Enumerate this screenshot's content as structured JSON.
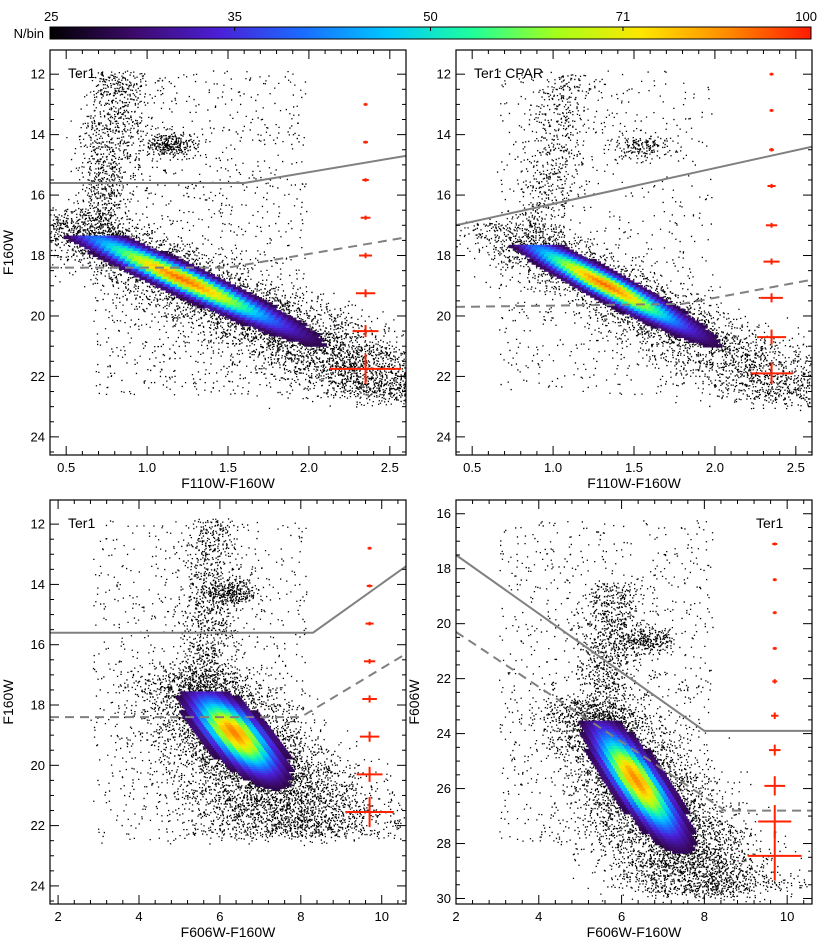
{
  "colorbar": {
    "label": "N/bin",
    "ticks": [
      {
        "value": 25,
        "label": "25"
      },
      {
        "value": 35,
        "label": "35"
      },
      {
        "value": 50,
        "label": "50"
      },
      {
        "value": 71,
        "label": "71"
      },
      {
        "value": 100,
        "label": "100"
      }
    ],
    "scale": "log",
    "range": [
      25,
      100
    ],
    "colors": [
      "#000000",
      "#3d0a6b",
      "#4b1fd8",
      "#1a6dff",
      "#00c8ff",
      "#1fff9a",
      "#a6ff1a",
      "#ffe600",
      "#ff8c00",
      "#ff1a00"
    ]
  },
  "style": {
    "point_color": "#000000",
    "error_color": "#ff2200",
    "line_color": "#808080"
  },
  "chart_data": [
    {
      "type": "scatter",
      "name": "panel-top-left",
      "title": "Ter1",
      "title_anchor": "left",
      "xlabel": "F110W-F160W",
      "ylabel": "F160W",
      "xlim": [
        0.4,
        2.6
      ],
      "ylim": [
        24.6,
        11.2
      ],
      "xticks": [
        0.5,
        1.0,
        1.5,
        2.0,
        2.5
      ],
      "yticks": [
        12,
        14,
        16,
        18,
        20,
        22,
        24
      ],
      "xtick_labels": [
        "0.5",
        "1.0",
        "1.5",
        "2.0",
        "2.5"
      ],
      "ytick_labels": [
        "12",
        "14",
        "16",
        "18",
        "20",
        "22",
        "24"
      ],
      "show_xlabel": true,
      "show_ylabel": true,
      "density": {
        "color_slope": 0.38,
        "mag_ref": 18.8,
        "color_at_ref": 1.22,
        "width": 0.14,
        "mag_top": 17.4,
        "mag_bottom": 21.3,
        "rgb_mag_top": 11.9,
        "rgb_width": 0.06,
        "rc_mag": 14.3,
        "rc_color": 1.15,
        "peak_mag": 18.8,
        "n_points": 5600
      },
      "solid_line": [
        [
          0.4,
          15.6
        ],
        [
          1.6,
          15.6
        ],
        [
          2.6,
          14.7
        ]
      ],
      "dashed_line": [
        [
          0.4,
          18.4
        ],
        [
          1.5,
          18.4
        ],
        [
          2.6,
          17.4
        ]
      ],
      "errorbars": [
        {
          "x": 2.35,
          "y": 13.0,
          "xerr": 0.01,
          "yerr": 0.04
        },
        {
          "x": 2.35,
          "y": 14.25,
          "xerr": 0.015,
          "yerr": 0.05
        },
        {
          "x": 2.35,
          "y": 15.5,
          "xerr": 0.02,
          "yerr": 0.06
        },
        {
          "x": 2.35,
          "y": 16.75,
          "xerr": 0.03,
          "yerr": 0.07
        },
        {
          "x": 2.35,
          "y": 18.0,
          "xerr": 0.04,
          "yerr": 0.09
        },
        {
          "x": 2.35,
          "y": 19.25,
          "xerr": 0.06,
          "yerr": 0.13
        },
        {
          "x": 2.35,
          "y": 20.5,
          "xerr": 0.08,
          "yerr": 0.2
        },
        {
          "x": 2.35,
          "y": 21.75,
          "xerr": 0.22,
          "yerr": 0.5
        }
      ]
    },
    {
      "type": "scatter",
      "name": "panel-top-right",
      "title": "Ter1 CPAR",
      "title_anchor": "left",
      "xlabel": "F110W-F160W",
      "ylabel": "",
      "xlim": [
        0.4,
        2.6
      ],
      "ylim": [
        24.6,
        11.2
      ],
      "xticks": [
        0.5,
        1.0,
        1.5,
        2.0,
        2.5
      ],
      "yticks": [
        12,
        14,
        16,
        18,
        20,
        22,
        24
      ],
      "xtick_labels": [
        "0.5",
        "1.0",
        "1.5",
        "2.0",
        "2.5"
      ],
      "ytick_labels": [
        "12",
        "14",
        "16",
        "18",
        "20",
        "22",
        "24"
      ],
      "show_xlabel": true,
      "show_ylabel": false,
      "density": {
        "color_slope": 0.33,
        "mag_ref": 19.0,
        "color_at_ref": 1.33,
        "width": 0.12,
        "mag_top": 17.7,
        "mag_bottom": 21.3,
        "rgb_mag_top": 12.0,
        "rgb_width": 0.06,
        "rc_mag": 14.4,
        "rc_color": 1.54,
        "peak_mag": 19.0,
        "n_points": 3400
      },
      "solid_line": [
        [
          0.4,
          17.0
        ],
        [
          2.6,
          14.4
        ]
      ],
      "dashed_line": [
        [
          0.4,
          19.7
        ],
        [
          1.8,
          19.6
        ],
        [
          2.6,
          18.8
        ]
      ],
      "errorbars": [
        {
          "x": 2.35,
          "y": 12.0,
          "xerr": 0.01,
          "yerr": 0.04
        },
        {
          "x": 2.35,
          "y": 13.2,
          "xerr": 0.012,
          "yerr": 0.05
        },
        {
          "x": 2.35,
          "y": 14.5,
          "xerr": 0.015,
          "yerr": 0.06
        },
        {
          "x": 2.35,
          "y": 15.7,
          "xerr": 0.025,
          "yerr": 0.07
        },
        {
          "x": 2.35,
          "y": 17.0,
          "xerr": 0.035,
          "yerr": 0.08
        },
        {
          "x": 2.35,
          "y": 18.2,
          "xerr": 0.05,
          "yerr": 0.1
        },
        {
          "x": 2.35,
          "y": 19.4,
          "xerr": 0.07,
          "yerr": 0.15
        },
        {
          "x": 2.35,
          "y": 20.7,
          "xerr": 0.09,
          "yerr": 0.25
        },
        {
          "x": 2.35,
          "y": 21.9,
          "xerr": 0.13,
          "yerr": 0.35
        }
      ]
    },
    {
      "type": "scatter",
      "name": "panel-bottom-left",
      "title": "Ter1",
      "title_anchor": "left",
      "xlabel": "F606W-F160W",
      "ylabel": "F160W",
      "xlim": [
        1.8,
        10.6
      ],
      "ylim": [
        24.6,
        11.2
      ],
      "xticks": [
        2,
        4,
        6,
        8,
        10
      ],
      "yticks": [
        12,
        14,
        16,
        18,
        20,
        22,
        24
      ],
      "xtick_labels": [
        "2",
        "4",
        "6",
        "8",
        "10"
      ],
      "ytick_labels": [
        "12",
        "14",
        "16",
        "18",
        "20",
        "22",
        "24"
      ],
      "show_xlabel": true,
      "show_ylabel": true,
      "density": {
        "color_slope": 0.55,
        "mag_ref": 19.0,
        "color_at_ref": 6.4,
        "width": 0.55,
        "mag_top": 17.6,
        "mag_bottom": 20.8,
        "rgb_mag_top": 11.8,
        "rgb_width": 0.22,
        "rc_mag": 14.3,
        "rc_color": 6.3,
        "peak_mag": 19.0,
        "n_points": 5000
      },
      "solid_line": [
        [
          1.8,
          15.6
        ],
        [
          8.3,
          15.6
        ],
        [
          10.6,
          13.4
        ]
      ],
      "dashed_line": [
        [
          1.8,
          18.4
        ],
        [
          8.0,
          18.4
        ],
        [
          10.6,
          16.3
        ]
      ],
      "errorbars": [
        {
          "x": 9.7,
          "y": 12.8,
          "xerr": 0.05,
          "yerr": 0.04
        },
        {
          "x": 9.7,
          "y": 14.05,
          "xerr": 0.07,
          "yerr": 0.05
        },
        {
          "x": 9.7,
          "y": 15.3,
          "xerr": 0.1,
          "yerr": 0.06
        },
        {
          "x": 9.7,
          "y": 16.55,
          "xerr": 0.14,
          "yerr": 0.08
        },
        {
          "x": 9.7,
          "y": 17.8,
          "xerr": 0.18,
          "yerr": 0.12
        },
        {
          "x": 9.7,
          "y": 19.05,
          "xerr": 0.24,
          "yerr": 0.17
        },
        {
          "x": 9.7,
          "y": 20.3,
          "xerr": 0.32,
          "yerr": 0.25
        },
        {
          "x": 9.7,
          "y": 21.55,
          "xerr": 0.6,
          "yerr": 0.5
        }
      ]
    },
    {
      "type": "scatter",
      "name": "panel-bottom-right",
      "title": "Ter1",
      "title_anchor": "right",
      "xlabel": "F606W-F160W",
      "ylabel": "F606W",
      "xlim": [
        2.0,
        10.6
      ],
      "ylim": [
        30.2,
        15.5
      ],
      "xticks": [
        2,
        4,
        6,
        8,
        10
      ],
      "yticks": [
        16,
        18,
        20,
        22,
        24,
        26,
        28,
        30
      ],
      "xtick_labels": [
        "2",
        "4",
        "6",
        "8",
        "10"
      ],
      "ytick_labels": [
        "16",
        "18",
        "20",
        "22",
        "24",
        "26",
        "28",
        "30"
      ],
      "show_xlabel": true,
      "show_ylabel": true,
      "density": {
        "color_slope": 0.42,
        "mag_ref": 25.8,
        "color_at_ref": 6.4,
        "width": 0.45,
        "mag_top": 23.6,
        "mag_bottom": 28.3,
        "rgb_mag_top": 18.5,
        "rgb_width": 0.25,
        "rc_mag": 20.6,
        "rc_color": 6.6,
        "peak_mag": 25.8,
        "n_points": 5200
      },
      "solid_line": [
        [
          2.0,
          17.5
        ],
        [
          8.0,
          23.9
        ],
        [
          10.6,
          23.9
        ]
      ],
      "dashed_line": [
        [
          2.0,
          20.3
        ],
        [
          8.5,
          26.8
        ],
        [
          10.6,
          26.8
        ]
      ],
      "errorbars": [
        {
          "x": 9.7,
          "y": 17.1,
          "xerr": 0.06,
          "yerr": 0.04
        },
        {
          "x": 9.7,
          "y": 18.4,
          "xerr": 0.04,
          "yerr": 0.04
        },
        {
          "x": 9.7,
          "y": 19.6,
          "xerr": 0.04,
          "yerr": 0.04
        },
        {
          "x": 9.7,
          "y": 20.9,
          "xerr": 0.05,
          "yerr": 0.05
        },
        {
          "x": 9.7,
          "y": 22.1,
          "xerr": 0.06,
          "yerr": 0.08
        },
        {
          "x": 9.7,
          "y": 23.35,
          "xerr": 0.09,
          "yerr": 0.12
        },
        {
          "x": 9.7,
          "y": 24.6,
          "xerr": 0.14,
          "yerr": 0.2
        },
        {
          "x": 9.7,
          "y": 25.9,
          "xerr": 0.25,
          "yerr": 0.35
        },
        {
          "x": 9.7,
          "y": 27.2,
          "xerr": 0.4,
          "yerr": 0.6
        },
        {
          "x": 9.7,
          "y": 28.45,
          "xerr": 0.65,
          "yerr": 0.9
        }
      ]
    }
  ]
}
